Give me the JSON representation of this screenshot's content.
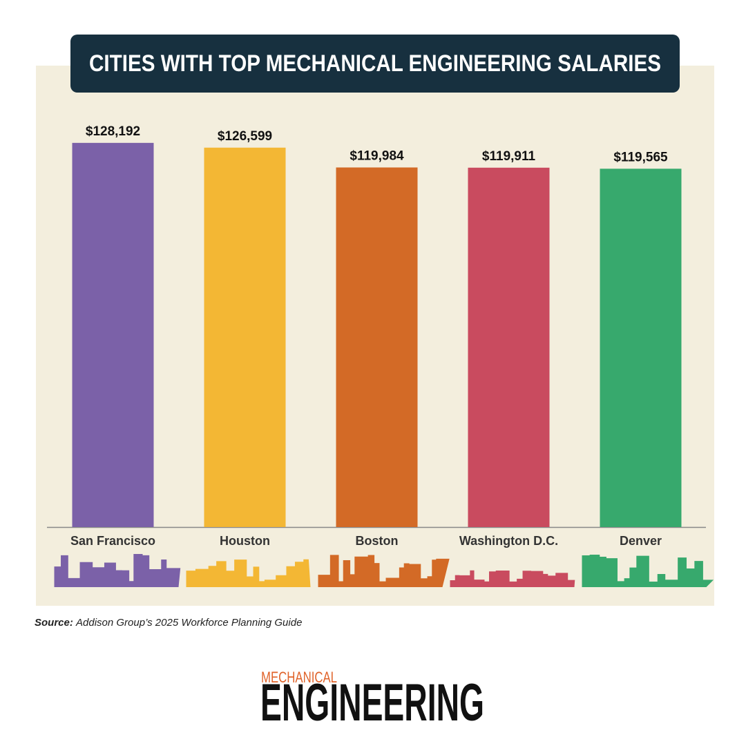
{
  "chart_data": {
    "type": "bar",
    "title": "CITIES WITH TOP MECHANICAL ENGINEERING SALARIES",
    "categories": [
      "San Francisco",
      "Houston",
      "Boston",
      "Washington D.C.",
      "Denver"
    ],
    "values": [
      128192,
      126599,
      119984,
      119911,
      119565
    ],
    "value_labels": [
      "$128,192",
      "$126,599",
      "$119,984",
      "$119,911",
      "$119,565"
    ],
    "colors": [
      "#7b61a8",
      "#f3b734",
      "#d36a26",
      "#c94b5f",
      "#37a96d"
    ],
    "ylim": [
      0,
      130000
    ]
  },
  "source_label": "Source:",
  "source": "Addison Group’s 2025 Workforce Planning Guide",
  "logo": {
    "top": "MECHANICAL",
    "bottom": "ENGINEERING"
  }
}
